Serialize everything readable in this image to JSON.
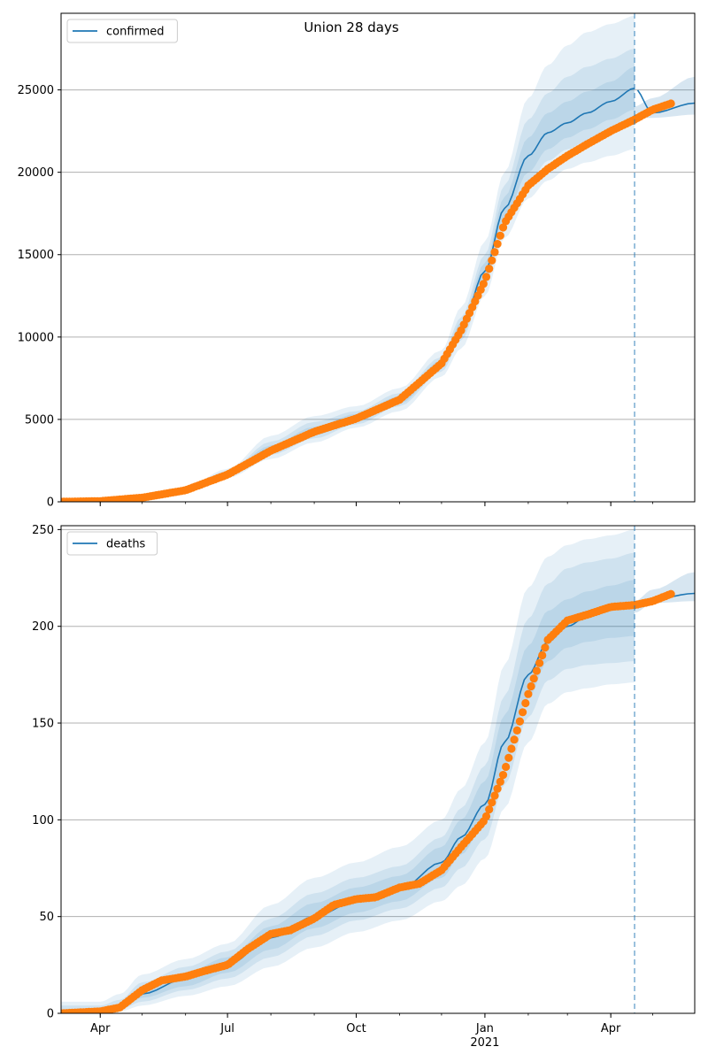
{
  "figure": {
    "title": "Union 28 days"
  },
  "colors": {
    "model": "#1f77b4",
    "observed": "#ff7f0e",
    "band": "#1f77b4",
    "grid": "#b0b0b0",
    "forecast_line": "#1f77b4"
  },
  "chart_data": [
    {
      "type": "line",
      "title": "Union 28 days",
      "xlabel": "",
      "ylabel": "",
      "x_range": [
        "2020-03-04",
        "2021-05-31"
      ],
      "ylim": [
        0,
        29650
      ],
      "yticks": [
        0,
        5000,
        10000,
        15000,
        20000,
        25000
      ],
      "xticks": [
        {
          "date": "2020-04-01",
          "label": "Apr",
          "sublabel": ""
        },
        {
          "date": "2020-07-01",
          "label": "Jul",
          "sublabel": ""
        },
        {
          "date": "2020-10-01",
          "label": "Oct",
          "sublabel": ""
        },
        {
          "date": "2021-01-01",
          "label": "Jan",
          "sublabel": "2021"
        },
        {
          "date": "2021-04-01",
          "label": "Apr",
          "sublabel": ""
        }
      ],
      "grid": "y-major",
      "legend": {
        "position": "top-left",
        "entries": [
          "confirmed"
        ]
      },
      "forecast_date": "2021-04-18",
      "series": [
        {
          "name": "confirmed",
          "kind": "model",
          "x": [
            "2020-03-04",
            "2020-04-01",
            "2020-05-01",
            "2020-06-01",
            "2020-07-01",
            "2020-08-01",
            "2020-09-01",
            "2020-10-01",
            "2020-11-01",
            "2020-12-01",
            "2020-12-15",
            "2021-01-01",
            "2021-01-15",
            "2021-02-01",
            "2021-02-15",
            "2021-03-01",
            "2021-03-15",
            "2021-04-01",
            "2021-04-18",
            "2021-05-01",
            "2021-05-31"
          ],
          "values": [
            0,
            40,
            250,
            700,
            1700,
            3200,
            4300,
            5100,
            6200,
            8400,
            10500,
            14000,
            17800,
            21000,
            22400,
            23000,
            23600,
            24300,
            25100,
            23600,
            24200
          ],
          "band_x": [
            "2020-03-04",
            "2020-04-01",
            "2020-05-01",
            "2020-06-01",
            "2020-07-01",
            "2020-08-01",
            "2020-09-01",
            "2020-10-01",
            "2020-11-01",
            "2020-12-01",
            "2020-12-15",
            "2021-01-01",
            "2021-01-15",
            "2021-02-01",
            "2021-02-15",
            "2021-03-01",
            "2021-03-15",
            "2021-04-01",
            "2021-04-18"
          ],
          "bands": [
            {
              "low": [
                0,
                20,
                180,
                560,
                1450,
                2600,
                3600,
                4500,
                5500,
                7600,
                9300,
                12500,
                16000,
                18400,
                19500,
                20200,
                20600,
                21000,
                21400
              ],
              "high": [
                0,
                60,
                330,
                880,
                2000,
                4000,
                5200,
                5800,
                6900,
                9200,
                11800,
                15800,
                20000,
                24500,
                26500,
                27700,
                28500,
                29000,
                29500
              ]
            },
            {
              "low": [
                0,
                28,
                205,
                610,
                1550,
                2850,
                3850,
                4700,
                5800,
                7900,
                9800,
                13100,
                16800,
                19300,
                20700,
                21400,
                21900,
                22400,
                22900
              ],
              "high": [
                0,
                52,
                300,
                800,
                1880,
                3650,
                4850,
                5500,
                6600,
                8800,
                11200,
                15000,
                19200,
                23200,
                24800,
                25800,
                26400,
                26900,
                27500
              ]
            },
            {
              "low": [
                0,
                34,
                225,
                650,
                1620,
                3000,
                4050,
                4850,
                5950,
                8100,
                10100,
                13500,
                17200,
                20000,
                21400,
                22100,
                22600,
                23200,
                23800
              ],
              "high": [
                0,
                46,
                280,
                760,
                1800,
                3420,
                4560,
                5330,
                6400,
                8600,
                10900,
                14500,
                18500,
                22100,
                23600,
                24300,
                24900,
                25500,
                26400
              ]
            }
          ],
          "future_band": {
            "x": [
              "2021-04-18",
              "2021-05-01",
              "2021-05-31"
            ],
            "low": [
              23300,
              23300,
              23500
            ],
            "high": [
              24000,
              24500,
              25800
            ]
          }
        },
        {
          "name": "",
          "kind": "observed",
          "x": [
            "2020-03-04",
            "2020-04-01",
            "2020-05-01",
            "2020-06-01",
            "2020-07-01",
            "2020-08-01",
            "2020-09-01",
            "2020-10-01",
            "2020-11-01",
            "2020-12-01",
            "2020-12-15",
            "2021-01-01",
            "2021-01-15",
            "2021-02-01",
            "2021-02-15",
            "2021-03-01",
            "2021-03-15",
            "2021-04-01",
            "2021-04-18",
            "2021-05-01",
            "2021-05-15"
          ],
          "values": [
            0,
            40,
            250,
            700,
            1650,
            3100,
            4250,
            5050,
            6200,
            8400,
            10400,
            13400,
            16900,
            19200,
            20200,
            21000,
            21700,
            22500,
            23200,
            23800,
            24200
          ]
        }
      ]
    },
    {
      "type": "line",
      "title": "",
      "xlabel": "",
      "ylabel": "",
      "x_range": [
        "2020-03-04",
        "2021-05-31"
      ],
      "ylim": [
        0,
        252
      ],
      "yticks": [
        0,
        50,
        100,
        150,
        200,
        250
      ],
      "xticks": [
        {
          "date": "2020-04-01",
          "label": "Apr",
          "sublabel": ""
        },
        {
          "date": "2020-07-01",
          "label": "Jul",
          "sublabel": ""
        },
        {
          "date": "2020-10-01",
          "label": "Oct",
          "sublabel": ""
        },
        {
          "date": "2021-01-01",
          "label": "Jan",
          "sublabel": "2021"
        },
        {
          "date": "2021-04-01",
          "label": "Apr",
          "sublabel": ""
        }
      ],
      "grid": "y-major",
      "legend": {
        "position": "top-left",
        "entries": [
          "deaths"
        ]
      },
      "forecast_date": "2021-04-18",
      "series": [
        {
          "name": "deaths",
          "kind": "model",
          "x": [
            "2020-03-04",
            "2020-04-01",
            "2020-04-15",
            "2020-05-01",
            "2020-06-01",
            "2020-07-01",
            "2020-08-01",
            "2020-09-01",
            "2020-10-01",
            "2020-11-01",
            "2020-12-01",
            "2020-12-15",
            "2021-01-01",
            "2021-01-15",
            "2021-02-01",
            "2021-02-15",
            "2021-03-01",
            "2021-03-15",
            "2021-04-01",
            "2021-04-18",
            "2021-05-01",
            "2021-05-31"
          ],
          "values": [
            0,
            1,
            3,
            10,
            18,
            25,
            39,
            50,
            58,
            64,
            78,
            91,
            108,
            140,
            175,
            192,
            200,
            205,
            209,
            211,
            214,
            217
          ],
          "band_x": [
            "2020-03-04",
            "2020-04-01",
            "2020-04-15",
            "2020-05-01",
            "2020-06-01",
            "2020-07-01",
            "2020-08-01",
            "2020-09-01",
            "2020-10-01",
            "2020-11-01",
            "2020-12-01",
            "2020-12-15",
            "2021-01-01",
            "2021-01-15",
            "2021-02-01",
            "2021-02-15",
            "2021-03-01",
            "2021-03-15",
            "2021-04-01",
            "2021-04-18"
          ],
          "bands": [
            {
              "low": [
                0,
                0,
                1,
                4,
                9,
                14,
                24,
                34,
                42,
                48,
                58,
                66,
                80,
                106,
                140,
                160,
                166,
                168,
                170,
                171
              ],
              "high": [
                6,
                6,
                10,
                20,
                28,
                36,
                56,
                70,
                78,
                86,
                100,
                116,
                140,
                180,
                220,
                236,
                242,
                245,
                247,
                250
              ]
            },
            {
              "low": [
                0,
                0,
                2,
                6,
                12,
                18,
                29,
                40,
                48,
                54,
                65,
                75,
                90,
                118,
                153,
                172,
                178,
                180,
                181,
                182
              ],
              "high": [
                4,
                4,
                7,
                16,
                24,
                32,
                49,
                62,
                70,
                76,
                91,
                106,
                128,
                164,
                204,
                222,
                230,
                233,
                235,
                238
              ]
            },
            {
              "low": [
                0,
                0,
                2,
                8,
                14,
                21,
                33,
                44,
                52,
                58,
                70,
                82,
                98,
                128,
                163,
                182,
                189,
                192,
                194,
                195
              ],
              "high": [
                2,
                2,
                5,
                13,
                21,
                29,
                45,
                57,
                65,
                71,
                86,
                100,
                120,
                154,
                190,
                208,
                214,
                218,
                221,
                224
              ]
            }
          ],
          "future_band": {
            "x": [
              "2021-04-18",
              "2021-05-01",
              "2021-05-31"
            ],
            "low": [
              207,
              212,
              213
            ],
            "high": [
              213,
              219,
              228
            ]
          }
        },
        {
          "name": "",
          "kind": "observed",
          "x": [
            "2020-03-04",
            "2020-04-01",
            "2020-04-15",
            "2020-05-01",
            "2020-05-15",
            "2020-06-01",
            "2020-06-15",
            "2020-07-01",
            "2020-07-15",
            "2020-08-01",
            "2020-08-15",
            "2020-09-01",
            "2020-09-15",
            "2020-10-01",
            "2020-10-15",
            "2020-11-01",
            "2020-11-15",
            "2020-12-01",
            "2020-12-15",
            "2021-01-01",
            "2021-01-15",
            "2021-02-01",
            "2021-02-15",
            "2021-03-01",
            "2021-03-15",
            "2021-04-01",
            "2021-04-18",
            "2021-05-01",
            "2021-05-15"
          ],
          "values": [
            0,
            1,
            3,
            12,
            17,
            19,
            22,
            25,
            33,
            41,
            43,
            49,
            56,
            59,
            60,
            65,
            67,
            74,
            86,
            100,
            125,
            165,
            193,
            203,
            206,
            210,
            211,
            213,
            217
          ]
        }
      ]
    }
  ]
}
